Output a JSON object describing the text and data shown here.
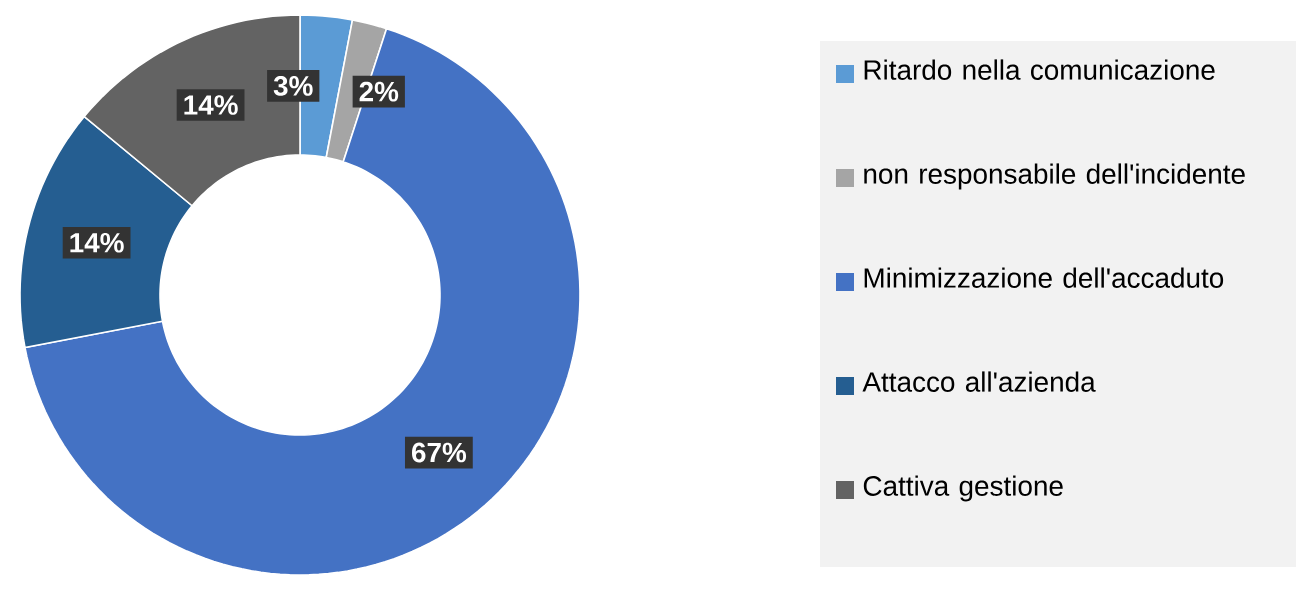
{
  "chart_data": {
    "type": "donut",
    "categories": [
      "Ritardo nella comunicazione",
      "non responsabile dell'incidente",
      "Minimizzazione dell'accaduto",
      "Attacco all'azienda",
      "Cattiva gestione"
    ],
    "values": [
      3,
      2,
      67,
      14,
      14
    ],
    "value_labels": [
      "3%",
      "2%",
      "67%",
      "14%",
      "14%"
    ],
    "colors": [
      "#5b9bd5",
      "#a5a5a5",
      "#4472c4",
      "#255e91",
      "#636363"
    ],
    "legend": "right"
  }
}
